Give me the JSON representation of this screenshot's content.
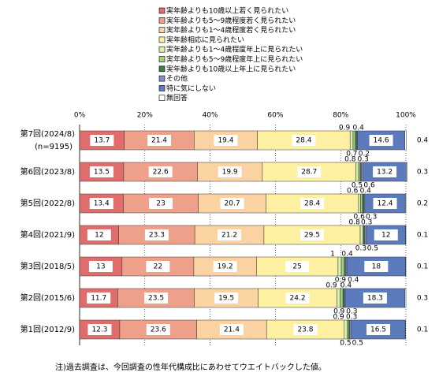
{
  "chart_data": {
    "type": "stacked-bar-100",
    "categories": [
      "第7回(2024/8)",
      "第6回(2023/8)",
      "第5回(2022/8)",
      "第4回(2021/9)",
      "第3回(2018/5)",
      "第2回(2015/6)",
      "第1回(2012/9)"
    ],
    "category_note": "(n=9195)",
    "series": [
      {
        "name": "実年齢よりも10歳以上若く見られたい",
        "color": "#e06c6c",
        "values": [
          13.7,
          13.5,
          13.4,
          12.0,
          13.0,
          11.7,
          12.3
        ]
      },
      {
        "name": "実年齢よりも5～9歳程度若く見られたい",
        "color": "#eea08a",
        "values": [
          21.4,
          22.6,
          23.0,
          23.3,
          22.0,
          23.5,
          23.6
        ]
      },
      {
        "name": "実年齢よりも1～4歳程度若く見られたい",
        "color": "#fbd3a3",
        "values": [
          19.4,
          19.9,
          20.7,
          21.2,
          19.2,
          19.5,
          21.4
        ]
      },
      {
        "name": "実年齢相応に見られたい",
        "color": "#fdf0a0",
        "values": [
          28.4,
          28.7,
          28.4,
          29.5,
          25.0,
          24.2,
          23.8
        ]
      },
      {
        "name": "実年齢よりも1～4歳程度年上に見られたい",
        "color": "#d8f0b0",
        "values": [
          0.9,
          0.8,
          0.6,
          0.8,
          1.0,
          0.9,
          0.9
        ]
      },
      {
        "name": "実年齢よりも5～9歳程度年上に見られたい",
        "color": "#a0d080",
        "values": [
          0.7,
          0.5,
          0.6,
          0.3,
          0.9,
          0.9,
          0.5
        ]
      },
      {
        "name": "実年齢よりも10歳以上年上に見られたい",
        "color": "#3f7f3f",
        "values": [
          0.4,
          0.3,
          0.4,
          0.3,
          0.4,
          0.4,
          0.3
        ]
      },
      {
        "name": "その他",
        "color": "#8c8cc8",
        "values": [
          0.2,
          0.6,
          0.3,
          0.5,
          0.4,
          0.3,
          0.5
        ]
      },
      {
        "name": "特に気にしない",
        "color": "#5b7bbd",
        "values": [
          14.6,
          13.2,
          12.4,
          12.0,
          18.0,
          18.3,
          16.5
        ]
      },
      {
        "name": "無回答",
        "color": "#ffffff",
        "values": [
          0.4,
          0.3,
          0.2,
          0.1,
          0.1,
          0.3,
          0.1
        ]
      }
    ],
    "xlim": [
      0,
      100
    ],
    "xticks": [
      {
        "value": 0,
        "label": "0%"
      },
      {
        "value": 20,
        "label": "20%"
      },
      {
        "value": 40,
        "label": "40%"
      },
      {
        "value": 60,
        "label": "60%"
      },
      {
        "value": 80,
        "label": "80%"
      },
      {
        "value": 100,
        "label": "100%"
      }
    ],
    "note": "注)過去調査は、今回調査の性年代構成比にあわせてウエイトバックした値。"
  }
}
